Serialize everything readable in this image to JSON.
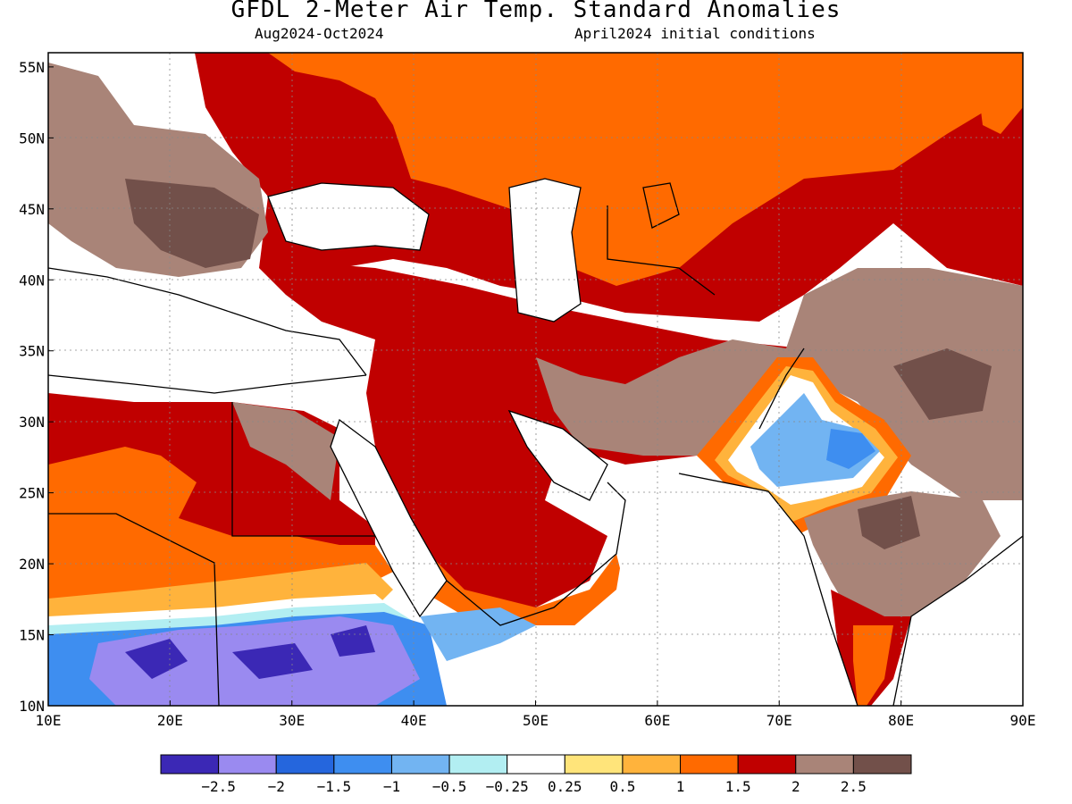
{
  "title": "GFDL 2-Meter Air Temp. Standard Anomalies",
  "subtitle_left": "Aug2024-Oct2024",
  "subtitle_right": "April2024 initial conditions",
  "map": {
    "lon_range": [
      10,
      90
    ],
    "lat_range": [
      10,
      56
    ],
    "lon_ticks": [
      "10E",
      "20E",
      "30E",
      "40E",
      "50E",
      "60E",
      "70E",
      "80E",
      "90E"
    ],
    "lat_ticks": [
      "55N",
      "50N",
      "45N",
      "40N",
      "35N",
      "30N",
      "25N",
      "20N",
      "15N",
      "10N"
    ]
  },
  "colorbar": {
    "colors": [
      "#3b28b5",
      "#9a8af0",
      "#2566dd",
      "#3e8ef0",
      "#72b4f2",
      "#b2eef2",
      "#ffffff",
      "#ffe47a",
      "#ffb33c",
      "#ff6a00",
      "#c00000",
      "#a98478",
      "#72504a"
    ],
    "labels": [
      "-2.5",
      "-2",
      "-1.5",
      "-1",
      "-0.5",
      "-0.25",
      "0.25",
      "0.5",
      "1",
      "1.5",
      "2",
      "2.5"
    ]
  },
  "colors": {
    "background": "#ffffff",
    "coast": "#000000"
  }
}
